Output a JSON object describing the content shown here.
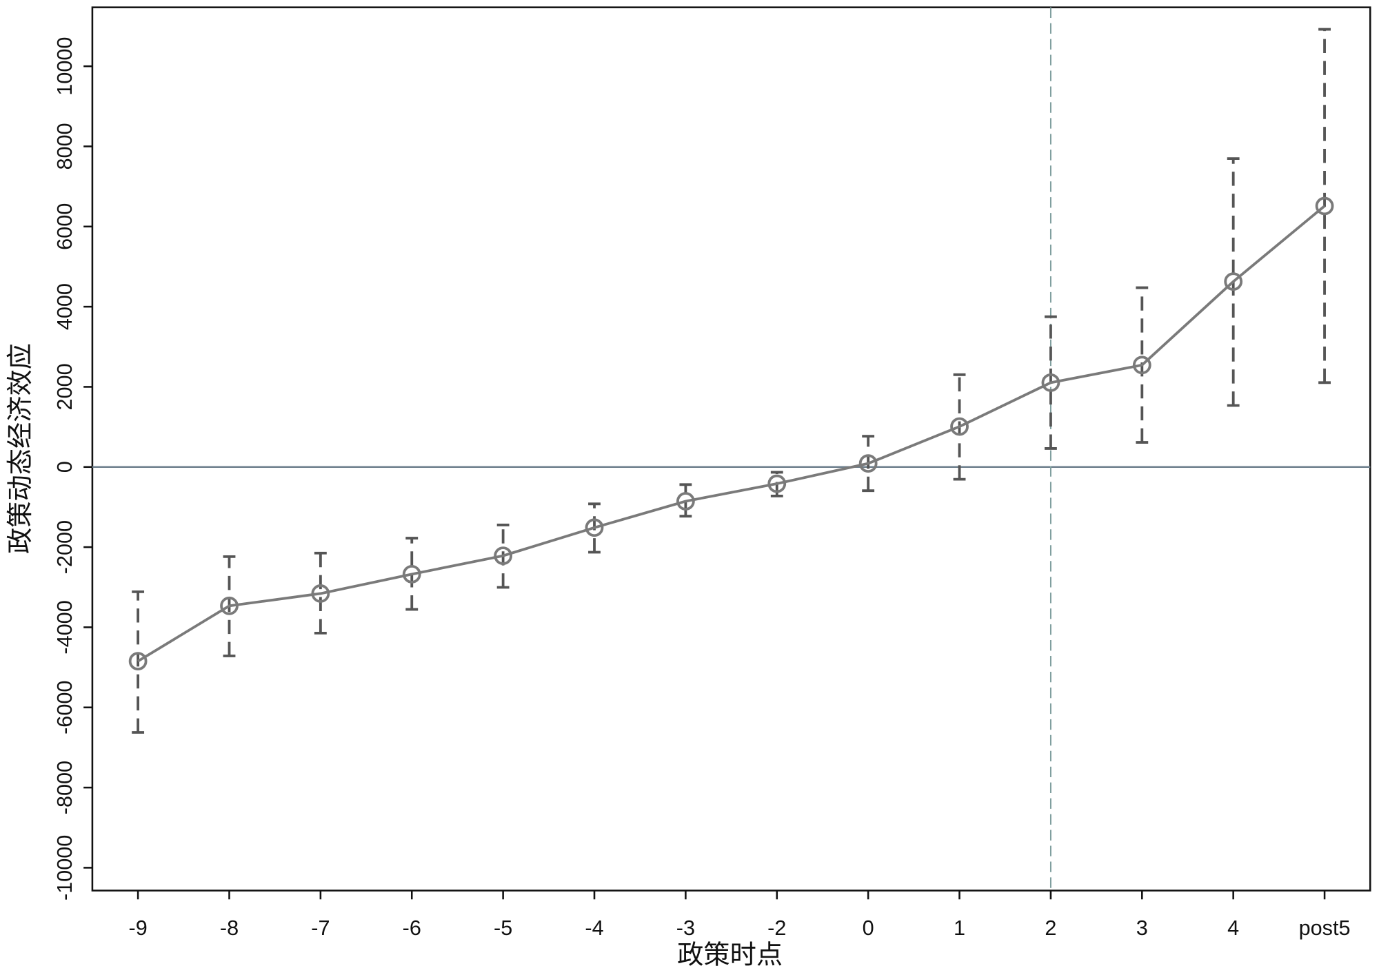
{
  "chart_data": {
    "type": "errorbar",
    "xlabel": "政策时点",
    "ylabel": "政策动态经济效应",
    "categories": [
      "-9",
      "-8",
      "-7",
      "-6",
      "-5",
      "-4",
      "-3",
      "-2",
      "0",
      "1",
      "2",
      "3",
      "4",
      "post5"
    ],
    "series": [
      {
        "color": "#7a7a7a",
        "error_color": "#555555",
        "values": [
          -4846,
          -3465,
          -3158,
          -2675,
          -2215,
          -1513,
          -855,
          -417,
          88,
          1009,
          2105,
          2544,
          4627,
          6513
        ],
        "lower": [
          -6623,
          -4715,
          -4145,
          -3553,
          -3004,
          -2127,
          -1228,
          -724,
          -592,
          -307,
          461,
          614,
          1535,
          2105
        ],
        "upper": [
          -3114,
          -2237,
          -2149,
          -1776,
          -1447,
          -921,
          -439,
          -132,
          768,
          2303,
          3750,
          4474,
          7697,
          10921
        ]
      }
    ],
    "ylim": [
      -10570,
      11470
    ],
    "yticks": [
      -10000,
      -8000,
      -6000,
      -4000,
      -2000,
      0,
      2000,
      4000,
      6000,
      8000,
      10000
    ],
    "hline": 0,
    "hline_color": "#6e7f8d",
    "vline_category": "2",
    "vline_color": "#7f9e9e"
  }
}
